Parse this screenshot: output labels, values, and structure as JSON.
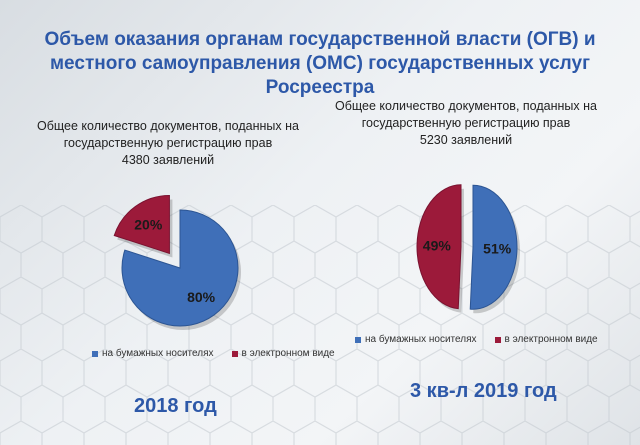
{
  "title": "Объем оказания органам государственной власти (ОГВ) и местного самоуправления (ОМС) государственных услуг Росреестра",
  "title_lines": [
    "Объем оказания органам государственной власти (ОГВ) и",
    "местного самоуправления (ОМС) государственных услуг",
    "Росреестра"
  ],
  "colors": {
    "paper": "#3f6fb8",
    "paper_dark": "#2c5593",
    "electronic": "#9c1a3a",
    "electronic_dark": "#7a1230",
    "title": "#2d58a8"
  },
  "chart_data": [
    {
      "type": "pie",
      "title": "Общее количество документов, поданных на государственную регистрацию прав",
      "subtitle_lines": [
        "Общее количество документов, поданных на",
        "государственную регистрацию прав",
        "4380 заявлений"
      ],
      "total_label": "4380 заявлений",
      "categories": [
        "на бумажных носителях",
        "в электронном виде"
      ],
      "values": [
        80,
        20
      ],
      "data_labels": [
        "80%",
        "20%"
      ],
      "exploded": "в электронном виде",
      "legend": [
        "на бумажных носителях",
        "в электронном виде"
      ],
      "legend_position": "bottom",
      "year": "2018 год"
    },
    {
      "type": "pie",
      "title": "Общее количество документов, поданных на государственную регистрацию прав",
      "subtitle_lines": [
        "Общее количество документов, поданных на",
        "государственную регистрацию прав",
        "5230 заявлений"
      ],
      "total_label": "5230 заявлений",
      "categories": [
        "на бумажных носителях",
        "в электронном виде"
      ],
      "values": [
        51,
        49
      ],
      "data_labels": [
        "51%",
        "49%"
      ],
      "exploded": "both",
      "legend": [
        "на бумажных носителях",
        "в электронном виде"
      ],
      "legend_position": "bottom",
      "year": "3 кв-л 2019 год"
    }
  ]
}
